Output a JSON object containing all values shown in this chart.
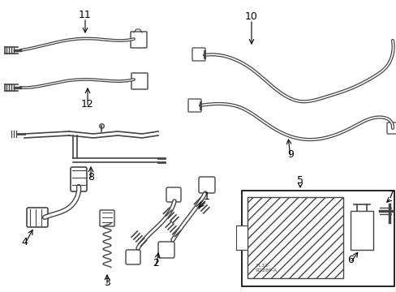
{
  "bg_color": "#ffffff",
  "line_color": "#444444",
  "text_color": "#000000",
  "border_color": "#000000",
  "figsize": [
    4.89,
    3.6
  ],
  "dpi": 100,
  "lw_tube": 1.5,
  "lw_thin": 0.8,
  "lw_border": 1.2,
  "font_size_label": 9
}
